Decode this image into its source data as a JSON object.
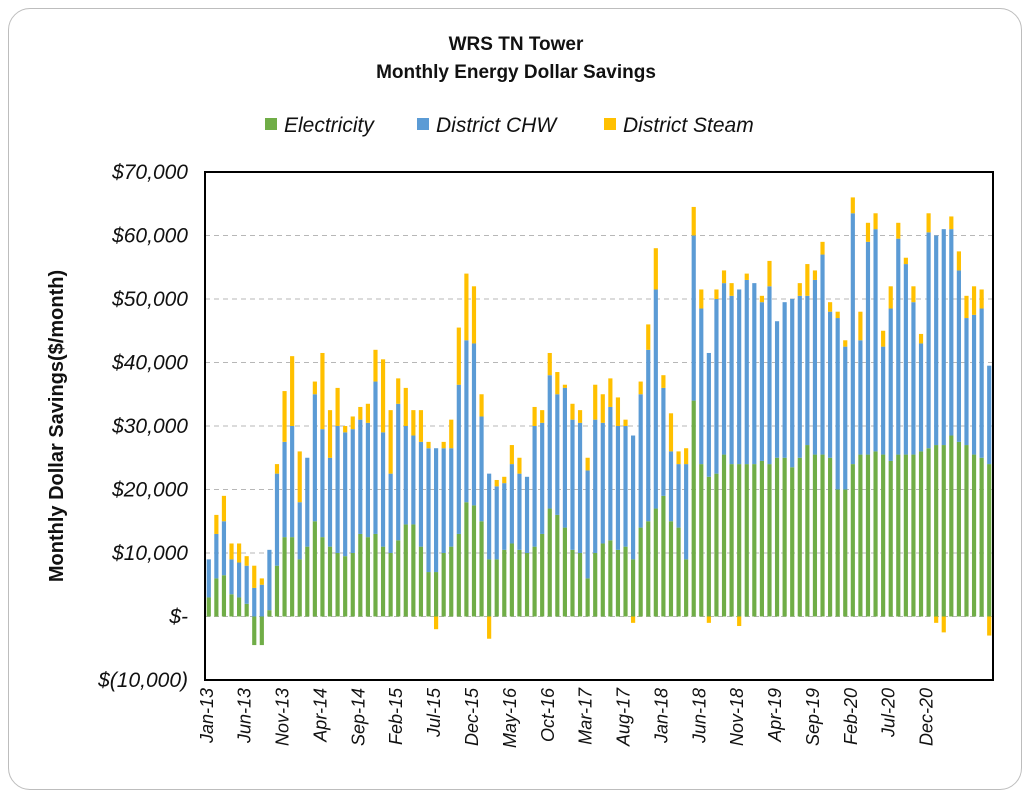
{
  "chart_data": {
    "type": "bar",
    "stacked": true,
    "title": "WRS TN Tower",
    "subtitle": "Monthly Energy Dollar Savings",
    "xlabel": "",
    "ylabel": "Monthly Dollar Savings($/month)",
    "ylim": [
      -10000,
      70000
    ],
    "yticks": [
      -10000,
      0,
      10000,
      20000,
      30000,
      40000,
      50000,
      60000,
      70000
    ],
    "ytick_labels": [
      "$(10,000)",
      "$-",
      "$10,000",
      "$20,000",
      "$30,000",
      "$40,000",
      "$50,000",
      "$60,000",
      "$70,000"
    ],
    "grid": true,
    "legend_position": "top",
    "x_tick_labels": [
      "Jan-13",
      "Jun-13",
      "Nov-13",
      "Apr-14",
      "Sep-14",
      "Feb-15",
      "Jul-15",
      "Dec-15",
      "May-16",
      "Oct-16",
      "Mar-17",
      "Aug-17",
      "Jan-18",
      "Jun-18",
      "Nov-18",
      "Apr-19",
      "Sep-19",
      "Feb-20",
      "Jul-20",
      "Dec-20"
    ],
    "x_tick_every": 5,
    "series": [
      {
        "name": "Electricity",
        "color": "#70ad47",
        "values": [
          3000,
          6000,
          6500,
          3500,
          3000,
          2000,
          -4500,
          -4500,
          1000,
          8000,
          12500,
          12500,
          9000,
          11000,
          15000,
          12500,
          11000,
          10000,
          9500,
          10000,
          13000,
          12500,
          13000,
          11000,
          10000,
          12000,
          14500,
          14500,
          11000,
          7000,
          7000,
          10000,
          11000,
          13000,
          18000,
          17500,
          15000,
          9000,
          9000,
          10500,
          11500,
          10500,
          10000,
          11000,
          13000,
          17000,
          16000,
          14000,
          10500,
          10000,
          6000,
          10000,
          11500,
          12000,
          10500,
          11000,
          9000,
          14000,
          15000,
          17000,
          19000,
          15000,
          14000,
          9000,
          34000,
          24000,
          22000,
          22500,
          25500,
          24000,
          24000,
          24000,
          24000,
          24500,
          24000,
          25000,
          25000,
          23500,
          25000,
          27000,
          25500,
          25500,
          25000,
          20000,
          20000,
          24000,
          25500,
          25500,
          26000,
          25500,
          24500,
          25500,
          25500,
          25500,
          26000,
          26500,
          27000,
          27000,
          28500,
          27500,
          27000,
          25500,
          25000,
          24000
        ]
      },
      {
        "name": "District CHW",
        "color": "#5b9bd5",
        "values": [
          6000,
          7000,
          8500,
          5500,
          5500,
          6000,
          4500,
          5000,
          9500,
          14500,
          15000,
          17500,
          9000,
          14000,
          20000,
          17000,
          14000,
          20000,
          19500,
          19500,
          18000,
          18000,
          24000,
          18000,
          12500,
          21500,
          15500,
          14000,
          16500,
          19500,
          19500,
          16500,
          15500,
          23500,
          25500,
          25500,
          16500,
          13500,
          11500,
          10500,
          12500,
          12000,
          12000,
          19000,
          17500,
          21000,
          19000,
          22000,
          20500,
          20500,
          17000,
          21000,
          19000,
          21000,
          19500,
          19000,
          19500,
          21000,
          27000,
          34500,
          17000,
          11000,
          10000,
          15000,
          26000,
          24500,
          19500,
          27500,
          27000,
          26500,
          27500,
          29000,
          28500,
          25000,
          28000,
          21500,
          24500,
          26500,
          25500,
          23500,
          27500,
          31500,
          23000,
          27000,
          22500,
          39500,
          18000,
          33500,
          35000,
          17000,
          24000,
          34000,
          30000,
          24000,
          17000,
          34000,
          33000,
          34000,
          32500,
          27000,
          20000,
          22000,
          23500,
          15500
        ]
      },
      {
        "name": "District Steam",
        "color": "#ffc000",
        "values": [
          0,
          3000,
          4000,
          2500,
          3000,
          1500,
          3500,
          1000,
          0,
          1500,
          8000,
          11000,
          8000,
          0,
          2000,
          12000,
          7500,
          6000,
          1000,
          2000,
          2000,
          3000,
          5000,
          11500,
          10000,
          4000,
          6000,
          4000,
          5000,
          1000,
          -2000,
          1000,
          4500,
          9000,
          10500,
          9000,
          3500,
          -3500,
          1000,
          1000,
          3000,
          2500,
          0,
          3000,
          2000,
          3500,
          3500,
          500,
          2500,
          2000,
          2000,
          5500,
          4500,
          4500,
          4500,
          1000,
          -1000,
          2000,
          4000,
          6500,
          2000,
          6000,
          2000,
          2500,
          4500,
          3000,
          -1000,
          1500,
          2000,
          2000,
          -1500,
          1000,
          0,
          1000,
          4000,
          0,
          0,
          0,
          2000,
          5000,
          1500,
          2000,
          1500,
          1000,
          1000,
          2500,
          4500,
          3000,
          2500,
          2500,
          3500,
          2500,
          1000,
          2500,
          1500,
          3000,
          -1000,
          -2500,
          2000,
          3000,
          3500,
          4500,
          3000,
          -3000
        ]
      }
    ]
  }
}
